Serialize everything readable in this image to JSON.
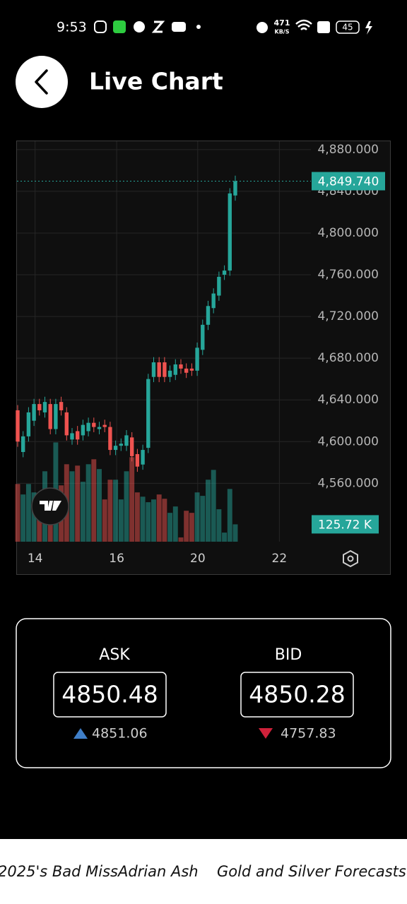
{
  "status_bar": {
    "time": "9:53",
    "speed": "471",
    "speed_unit": "KB/S",
    "battery": "45"
  },
  "header": {
    "title": "Live Chart"
  },
  "chart_data": {
    "type": "candlestick",
    "open": [
      4630,
      4590,
      4605,
      4620,
      4636,
      4628,
      4636,
      4612,
      4638,
      4628,
      4602,
      4610,
      4606,
      4610,
      4618,
      4612,
      4616,
      4614,
      4592,
      4596,
      4596,
      4604,
      4588,
      4578,
      4594,
      4662,
      4676,
      4676,
      4662,
      4664,
      4674,
      4670,
      4670,
      4668,
      4688,
      4712,
      4728,
      4740,
      4760,
      4764,
      4836
    ],
    "high": [
      4635,
      4610,
      4633,
      4641,
      4641,
      4643,
      4641,
      4641,
      4643,
      4633,
      4613,
      4615,
      4621,
      4623,
      4623,
      4619,
      4621,
      4619,
      4601,
      4603,
      4611,
      4609,
      4593,
      4597,
      4665,
      4681,
      4681,
      4681,
      4673,
      4679,
      4679,
      4675,
      4675,
      4695,
      4717,
      4735,
      4747,
      4763,
      4769,
      4843,
      4855
    ],
    "low": [
      4595,
      4585,
      4600,
      4615,
      4625,
      4623,
      4607,
      4607,
      4625,
      4601,
      4597,
      4597,
      4601,
      4605,
      4609,
      4607,
      4609,
      4587,
      4587,
      4591,
      4591,
      4581,
      4571,
      4573,
      4589,
      4657,
      4657,
      4657,
      4657,
      4659,
      4665,
      4661,
      4663,
      4663,
      4683,
      4707,
      4723,
      4735,
      4755,
      4759,
      4831
    ],
    "close": [
      4600,
      4605,
      4628,
      4636,
      4630,
      4638,
      4612,
      4636,
      4630,
      4606,
      4608,
      4602,
      4616,
      4618,
      4614,
      4614,
      4614,
      4592,
      4596,
      4598,
      4606,
      4586,
      4576,
      4592,
      4660,
      4676,
      4662,
      4662,
      4668,
      4674,
      4670,
      4666,
      4668,
      4690,
      4712,
      4730,
      4742,
      4758,
      4764,
      4838,
      4849.74
    ],
    "volume": [
      418,
      342,
      418,
      357,
      306,
      510,
      342,
      719,
      408,
      561,
      510,
      551,
      434,
      561,
      597,
      526,
      306,
      449,
      449,
      306,
      510,
      612,
      357,
      326,
      286,
      306,
      342,
      311,
      209,
      255,
      31,
      224,
      209,
      357,
      332,
      449,
      520,
      235,
      66,
      382,
      125.72
    ],
    "up_color": "#26a69a",
    "down_color": "#ef5350",
    "xlim": [
      -0.13,
      53.9
    ],
    "xticks": [
      {
        "value": 3.2,
        "label": "14"
      },
      {
        "value": 18.2,
        "label": "16"
      },
      {
        "value": 33.1,
        "label": "20"
      },
      {
        "value": 48.1,
        "label": "22"
      }
    ],
    "ylim": [
      4504,
      4888
    ],
    "yticks": [
      {
        "value": 4560,
        "label": "4,560.000"
      },
      {
        "value": 4600,
        "label": "4,600.000"
      },
      {
        "value": 4640,
        "label": "4,640.000"
      },
      {
        "value": 4680,
        "label": "4,680.000"
      },
      {
        "value": 4720,
        "label": "4,720.000"
      },
      {
        "value": 4760,
        "label": "4,760.000"
      },
      {
        "value": 4800,
        "label": "4,800.000"
      },
      {
        "value": 4840,
        "label": "4,840.000"
      },
      {
        "value": 4880,
        "label": "4,880.000"
      }
    ],
    "y2lim": [
      0,
      2900
    ],
    "grid": true,
    "last_price": {
      "value": 4849.74,
      "label": "4,849.740"
    },
    "last_volume": {
      "value": 125.72,
      "label": "125.72 K"
    }
  },
  "quotes": {
    "ask": {
      "label": "ASK",
      "price": "4850.48",
      "change": "4851.06"
    },
    "bid": {
      "label": "BID",
      "price": "4850.28",
      "change": "4757.83"
    }
  },
  "ticker": [
    "2025's Bad MissAdrian Ash",
    "Gold and Silver Forecasts"
  ]
}
